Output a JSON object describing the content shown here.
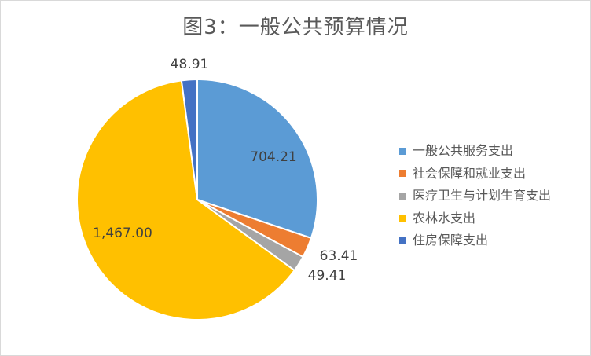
{
  "chart_data": {
    "type": "pie",
    "title": "图3：一般公共预算情况",
    "slices": [
      {
        "name": "一般公共服务支出",
        "value": 704.21,
        "label": "704.21",
        "color": "#5B9BD5"
      },
      {
        "name": "社会保障和就业支出",
        "value": 63.41,
        "label": "63.41",
        "color": "#ED7D31"
      },
      {
        "name": "医疗卫生与计划生育支出",
        "value": 49.41,
        "label": "49.41",
        "color": "#A5A5A5"
      },
      {
        "name": "农林水支出",
        "value": 1467.0,
        "label": "1,467.00",
        "color": "#FFC000"
      },
      {
        "name": "住房保障支出",
        "value": 48.91,
        "label": "48.91",
        "color": "#4472C4"
      }
    ],
    "legend_position": "right",
    "start_angle": "12 o'clock",
    "direction": "clockwise"
  }
}
